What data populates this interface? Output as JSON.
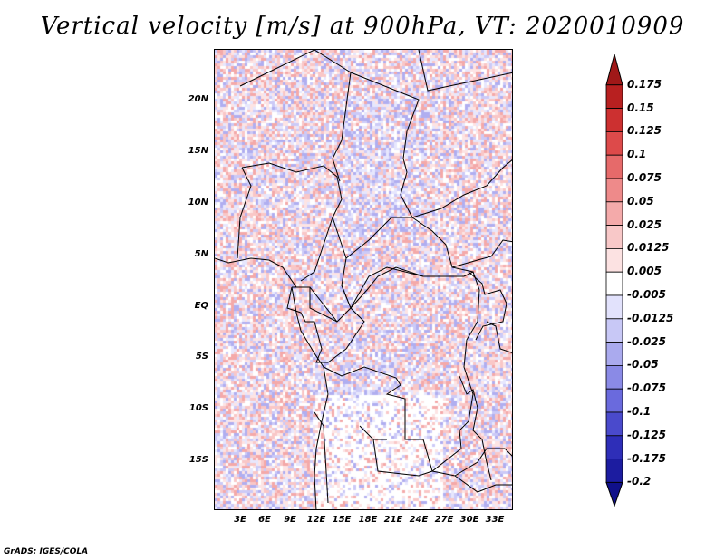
{
  "title": "Vertical velocity [m/s] at 900hPa, VT: 2020010909",
  "credit": "GrADS: IGES/COLA",
  "lat_labels": [
    "20N",
    "15N",
    "10N",
    "5N",
    "EQ",
    "5S",
    "10S",
    "15S"
  ],
  "lon_labels": [
    "3E",
    "6E",
    "9E",
    "12E",
    "15E",
    "18E",
    "21E",
    "24E",
    "27E",
    "30E",
    "33E"
  ],
  "colorbar": {
    "labels": [
      "0.175",
      "0.15",
      "0.125",
      "0.1",
      "0.075",
      "0.05",
      "0.025",
      "0.0125",
      "0.005",
      "-0.005",
      "-0.0125",
      "-0.025",
      "-0.05",
      "-0.075",
      "-0.1",
      "-0.125",
      "-0.175",
      "-0.2"
    ],
    "colors": [
      "#a01818",
      "#b82020",
      "#cc3030",
      "#dd4a4a",
      "#e66a6a",
      "#ee8a8a",
      "#f4aaaa",
      "#f8c8c8",
      "#fce2e2",
      "#ffffff",
      "#e2e2fc",
      "#c8c8f6",
      "#aaaaee",
      "#8a8ae6",
      "#6a6add",
      "#4a4acc",
      "#2e2eb8",
      "#1c1ca0",
      "#10108a"
    ]
  },
  "pattern_colors": [
    "#fde4e4",
    "#f9c7c7",
    "#f4a9a9",
    "#e7e7fd",
    "#cccaf7",
    "#b0aef0",
    "#ffffff"
  ]
}
